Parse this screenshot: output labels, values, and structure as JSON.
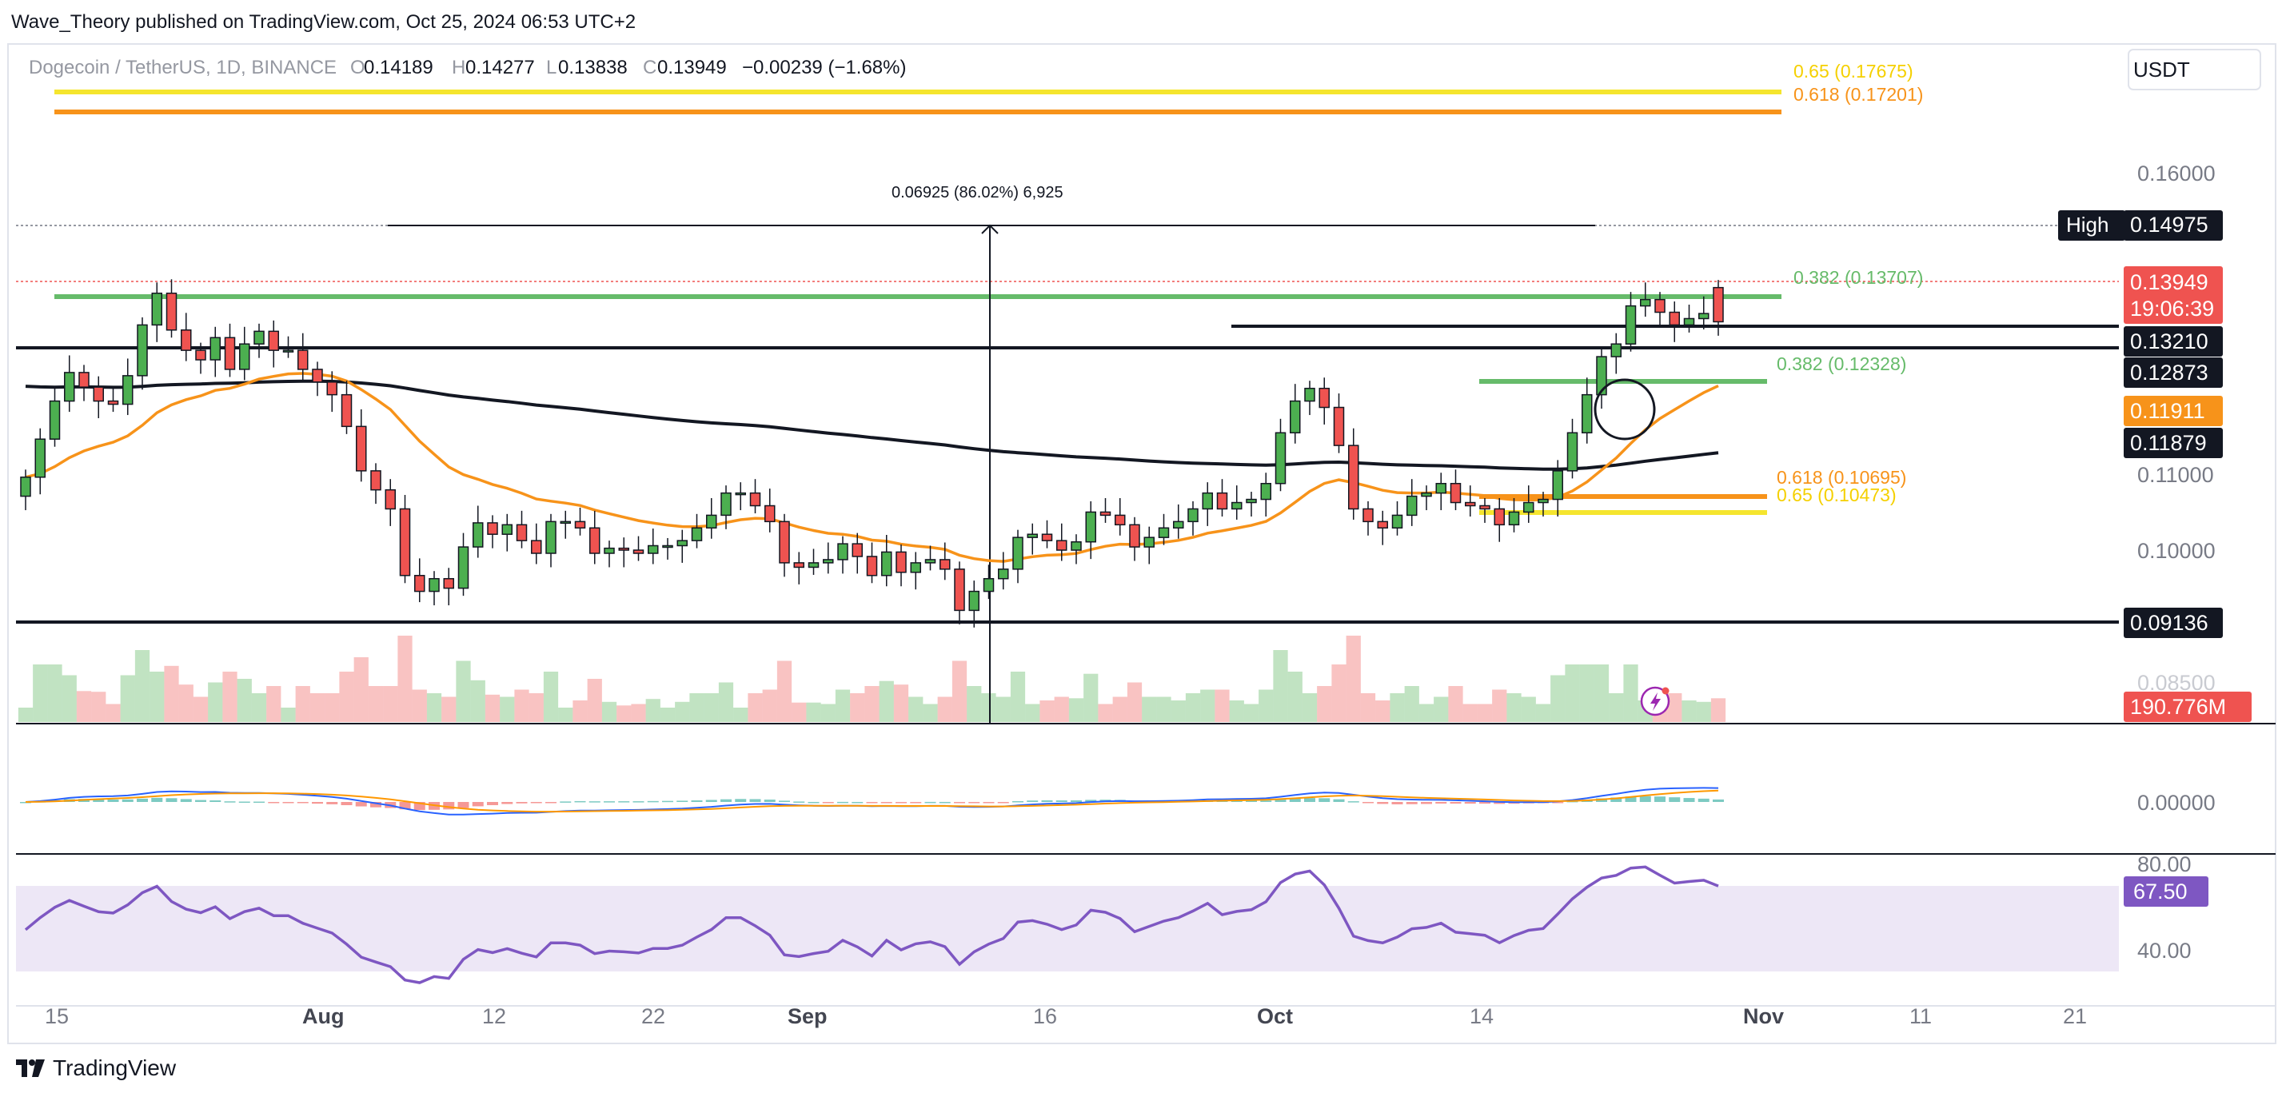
{
  "publisher_line": "Wave_Theory published on TradingView.com, Oct 25, 2024 06:53 UTC+2",
  "brand": "TradingView",
  "currency_button": "USDT",
  "colors": {
    "up": "#4caf50",
    "down": "#ef5350",
    "ema50": "#f7931a",
    "ema200": "#131722",
    "fib_green": "#66bb6a",
    "fib_orange": "#f7931a",
    "fib_yellow": "#f5e52e",
    "rsi": "#7e57c2",
    "macd": "#2962ff",
    "signal": "#ff9800"
  },
  "symbol_header": {
    "name": "Dogecoin / TetherUS, 1D, BINANCE",
    "open_key": "O",
    "open": "0.14189",
    "high_key": "H",
    "high": "0.14277",
    "low_key": "L",
    "low": "0.13838",
    "close_key": "C",
    "close": "0.13949",
    "change": "−0.00239 (−1.68%)"
  },
  "annotations": {
    "measure": "0.06925 (86.02%) 6,925",
    "high_tag": "High",
    "fib_065_top": "0.65 (0.17675)",
    "fib_0618_top": "0.618 (0.17201)",
    "fib_0382_upper": "0.382 (0.13707)",
    "fib_0382_lower": "0.382 (0.12328)",
    "fib_0618_lower": "0.618 (0.10695)",
    "fib_065_lower": "0.65 (0.10473)"
  },
  "price_axis": {
    "ticks": [
      "0.16000",
      "0.11000",
      "0.10000",
      "0.08500"
    ],
    "tags": {
      "high": "0.14975",
      "last": "0.13949",
      "countdown": "19:06:39",
      "res1": "0.13210",
      "res2": "0.12873",
      "ema50": "0.11911",
      "ema200": "0.11879",
      "support": "0.09136",
      "volume": "190.776M"
    }
  },
  "macd_axis": {
    "ticks": [
      "0.00000"
    ]
  },
  "rsi_axis": {
    "ticks": [
      "80.00",
      "40.00"
    ],
    "value": "67.50"
  },
  "time_axis": [
    "15",
    "Aug",
    "12",
    "22",
    "Sep",
    "16",
    "Oct",
    "14",
    "Nov",
    "11",
    "21"
  ],
  "chart_data": {
    "type": "candlestick",
    "title": "Dogecoin / TetherUS, 1D, BINANCE",
    "ohlc_last": {
      "open": 0.14189,
      "high": 0.14277,
      "low": 0.13838,
      "close": 0.13949
    },
    "levels": {
      "fib_0.65_top": 0.17675,
      "fib_0.618_top": 0.17201,
      "high": 0.14975,
      "fib_0.382_upper": 0.13707,
      "resistance_1": 0.1321,
      "resistance_2": 0.12873,
      "fib_0.382_lower": 0.12328,
      "ema50": 0.11911,
      "ema200": 0.11879,
      "fib_0.618_lower": 0.10695,
      "fib_0.65_lower": 0.10473,
      "support": 0.09136
    },
    "closes": [
      0.112,
      0.118,
      0.124,
      0.1285,
      0.1262,
      0.124,
      0.1235,
      0.128,
      0.136,
      0.141,
      0.1352,
      0.132,
      0.1305,
      0.134,
      0.129,
      0.133,
      0.135,
      0.132,
      0.132,
      0.129,
      0.127,
      0.125,
      0.12,
      0.113,
      0.11,
      0.107,
      0.0965,
      0.094,
      0.096,
      0.0945,
      0.101,
      0.1048,
      0.103,
      0.1045,
      0.102,
      0.1,
      0.105,
      0.105,
      0.104,
      0.1,
      0.1008,
      0.1005,
      0.1,
      0.1012,
      0.1012,
      0.102,
      0.104,
      0.106,
      0.1095,
      0.1095,
      0.1075,
      0.105,
      0.0985,
      0.0978,
      0.0985,
      0.099,
      0.1015,
      0.0995,
      0.0965,
      0.1002,
      0.097,
      0.0985,
      0.099,
      0.0975,
      0.091,
      0.094,
      0.096,
      0.0975,
      0.1025,
      0.103,
      0.102,
      0.1005,
      0.1018,
      0.1065,
      0.106,
      0.1045,
      0.101,
      0.1025,
      0.104,
      0.105,
      0.107,
      0.1095,
      0.107,
      0.108,
      0.1085,
      0.111,
      0.119,
      0.124,
      0.126,
      0.123,
      0.117,
      0.107,
      0.105,
      0.104,
      0.106,
      0.109,
      0.1095,
      0.111,
      0.108,
      0.1075,
      0.107,
      0.1045,
      0.1065,
      0.108,
      0.1085,
      0.113,
      0.119,
      0.125,
      0.131,
      0.133,
      0.139,
      0.14,
      0.138,
      0.136,
      0.137,
      0.1378,
      0.1365
    ],
    "volume_ylim": [
      0,
      1
    ]
  }
}
